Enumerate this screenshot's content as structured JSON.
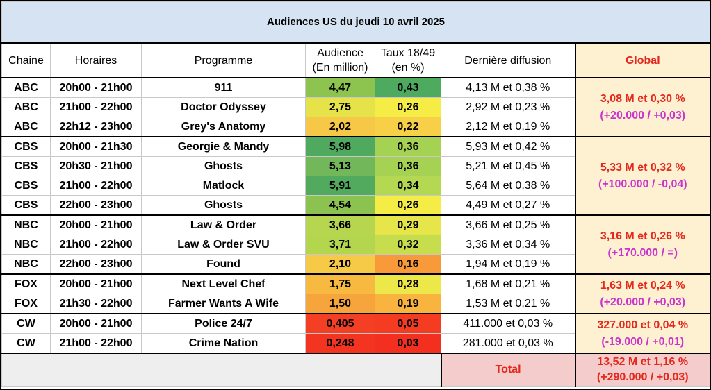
{
  "title": "Audiences US du jeudi 10 avril 2025",
  "headers": {
    "chaine": "Chaine",
    "horaires": "Horaires",
    "programme": "Programme",
    "audience_line1": "Audience",
    "audience_line2": "(En million)",
    "taux_line1": "Taux 18/49",
    "taux_line2": "(en %)",
    "derniere": "Dernière diffusion",
    "global": "Global"
  },
  "colors": {
    "title_bg": "#d5e3f3",
    "global_bg": "#fdf1d2",
    "total_bg": "#f4cccc",
    "accent_red": "#e5281c",
    "delta_magenta": "#cc33cc"
  },
  "rows": [
    {
      "chaine": "ABC",
      "horaires": "20h00 - 21h00",
      "programme": "911",
      "audience": "4,47",
      "taux": "0,43",
      "derniere": "4,13 M et 0,38 %",
      "aud_color": "#8cc44f",
      "taux_color": "#4daa5e"
    },
    {
      "chaine": "ABC",
      "horaires": "21h00 - 22h00",
      "programme": "Doctor Odyssey",
      "audience": "2,75",
      "taux": "0,26",
      "derniere": "2,92 M et 0,23 %",
      "aud_color": "#e6e24a",
      "taux_color": "#f6ec46"
    },
    {
      "chaine": "ABC",
      "horaires": "22h12 - 23h00",
      "programme": "Grey's Anatomy",
      "audience": "2,02",
      "taux": "0,22",
      "derniere": "2,12 M et 0,19 %",
      "aud_color": "#f7c847",
      "taux_color": "#f8d047"
    },
    {
      "chaine": "CBS",
      "horaires": "20h00 - 21h30",
      "programme": "Georgie & Mandy",
      "audience": "5,98",
      "taux": "0,36",
      "derniere": "5,93 M et 0,42 %",
      "aud_color": "#4fa95e",
      "taux_color": "#a6d253"
    },
    {
      "chaine": "CBS",
      "horaires": "20h30 - 21h00",
      "programme": "Ghosts",
      "audience": "5,13",
      "taux": "0,36",
      "derniere": "5,21 M et 0,45 %",
      "aud_color": "#72b85a",
      "taux_color": "#a6d253"
    },
    {
      "chaine": "CBS",
      "horaires": "21h00 - 22h00",
      "programme": "Matlock",
      "audience": "5,91",
      "taux": "0,34",
      "derniere": "5,64 M et 0,38 %",
      "aud_color": "#52aa5e",
      "taux_color": "#b4d851"
    },
    {
      "chaine": "CBS",
      "horaires": "22h00 - 23h00",
      "programme": "Ghosts",
      "audience": "4,54",
      "taux": "0,26",
      "derniere": "4,49 M et 0,27 %",
      "aud_color": "#8cc24f",
      "taux_color": "#f6ec46"
    },
    {
      "chaine": "NBC",
      "horaires": "20h00 - 21h00",
      "programme": "Law & Order",
      "audience": "3,66",
      "taux": "0,29",
      "derniere": "3,66 M et 0,25 %",
      "aud_color": "#b6d64f",
      "taux_color": "#e6e64a"
    },
    {
      "chaine": "NBC",
      "horaires": "21h00 - 22h00",
      "programme": "Law & Order SVU",
      "audience": "3,71",
      "taux": "0,32",
      "derniere": "3,36 M et 0,34 %",
      "aud_color": "#b4d64f",
      "taux_color": "#c6de4d"
    },
    {
      "chaine": "NBC",
      "horaires": "22h00 - 23h00",
      "programme": "Found",
      "audience": "2,10",
      "taux": "0,16",
      "derniere": "1,94 M et 0,19 %",
      "aud_color": "#f6ca47",
      "taux_color": "#f89a3a"
    },
    {
      "chaine": "FOX",
      "horaires": "20h00 - 21h00",
      "programme": "Next Level Chef",
      "audience": "1,75",
      "taux": "0,28",
      "derniere": "1,68 M et 0,21 %",
      "aud_color": "#f7b940",
      "taux_color": "#ece849"
    },
    {
      "chaine": "FOX",
      "horaires": "21h30 - 22h00",
      "programme": "Farmer Wants A Wife",
      "audience": "1,50",
      "taux": "0,19",
      "derniere": "1,53 M et 0,21 %",
      "aud_color": "#f6a43c",
      "taux_color": "#f8b43e"
    },
    {
      "chaine": "CW",
      "horaires": "20h00 - 21h00",
      "programme": "Police 24/7",
      "audience": "0,405",
      "taux": "0,05",
      "derniere": "411.000 et 0,03 %",
      "aud_color": "#f43f24",
      "taux_color": "#f43c22"
    },
    {
      "chaine": "CW",
      "horaires": "21h00 - 22h00",
      "programme": "Crime Nation",
      "audience": "0,248",
      "taux": "0,03",
      "derniere": "281.000 et 0,03 %",
      "aud_color": "#f33420",
      "taux_color": "#f3301f"
    }
  ],
  "globals": {
    "abc": {
      "main": "3,08 M et 0,30 %",
      "delta": "(+20.000 / +0,03)"
    },
    "cbs": {
      "main": "5,33 M et 0,32 %",
      "delta": "(+100.000 / -0,04)"
    },
    "nbc": {
      "main": "3,16 M et 0,26 %",
      "delta": "(+170.000 / =)"
    },
    "fox": {
      "main": "1,63 M et 0,24 %",
      "delta": "(+20.000 / +0,03)"
    },
    "cw": {
      "main": "327.000 et 0,04 %",
      "delta": "(-19.000 / +0,01)"
    }
  },
  "total": {
    "label": "Total",
    "main": "13,52 M et 1,16 %",
    "delta": "(+290.000 / +0,03)"
  }
}
